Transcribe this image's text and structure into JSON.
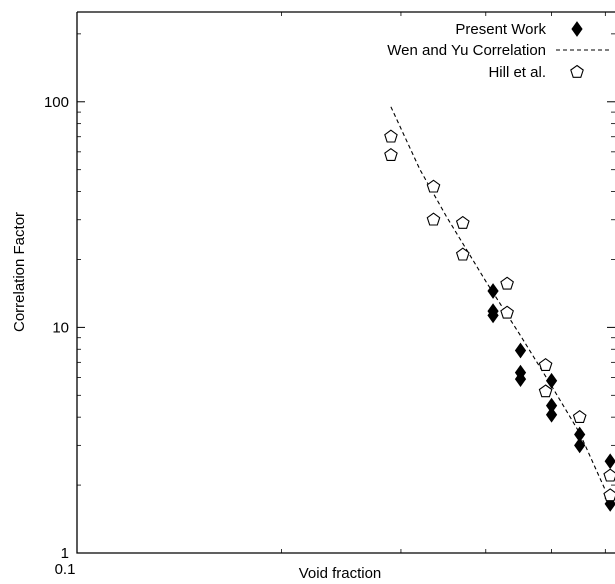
{
  "chart_data": {
    "type": "scatter",
    "x_scale": "log",
    "y_scale": "log",
    "xlabel": "Void fraction",
    "ylabel": "Correlation Factor",
    "xlim": [
      0.1,
      0.62
    ],
    "ylim": [
      1,
      250
    ],
    "x_tick_labels": [
      {
        "value": 0.1,
        "label": "0.1"
      }
    ],
    "y_tick_labels": [
      {
        "value": 1,
        "label": "1"
      },
      {
        "value": 10,
        "label": "10"
      },
      {
        "value": 100,
        "label": "100"
      }
    ],
    "legend_position": "top-right",
    "series": [
      {
        "name": "Present Work",
        "kind": "points",
        "marker": "filled-diamond",
        "color": "#000000",
        "points": [
          {
            "x": 0.41,
            "y": 14.5
          },
          {
            "x": 0.41,
            "y": 11.8
          },
          {
            "x": 0.41,
            "y": 11.3
          },
          {
            "x": 0.45,
            "y": 7.9
          },
          {
            "x": 0.45,
            "y": 6.3
          },
          {
            "x": 0.45,
            "y": 5.9
          },
          {
            "x": 0.5,
            "y": 5.8
          },
          {
            "x": 0.5,
            "y": 4.5
          },
          {
            "x": 0.5,
            "y": 4.1
          },
          {
            "x": 0.55,
            "y": 3.35
          },
          {
            "x": 0.55,
            "y": 3.0
          },
          {
            "x": 0.61,
            "y": 2.55
          },
          {
            "x": 0.61,
            "y": 1.75
          },
          {
            "x": 0.61,
            "y": 1.65
          }
        ]
      },
      {
        "name": "Wen and Yu Correlation",
        "kind": "line",
        "line_style": "dashed",
        "color": "#000000",
        "points": [
          {
            "x": 0.29,
            "y": 95
          },
          {
            "x": 0.32,
            "y": 50
          },
          {
            "x": 0.35,
            "y": 31
          },
          {
            "x": 0.4,
            "y": 16
          },
          {
            "x": 0.45,
            "y": 9.2
          },
          {
            "x": 0.5,
            "y": 5.5
          },
          {
            "x": 0.55,
            "y": 3.4
          },
          {
            "x": 0.6,
            "y": 1.9
          }
        ]
      },
      {
        "name": "Hill et al.",
        "kind": "points",
        "marker": "open-pentagon",
        "color": "#000000",
        "points": [
          {
            "x": 0.29,
            "y": 70
          },
          {
            "x": 0.29,
            "y": 58
          },
          {
            "x": 0.335,
            "y": 42
          },
          {
            "x": 0.335,
            "y": 30
          },
          {
            "x": 0.37,
            "y": 29
          },
          {
            "x": 0.37,
            "y": 21
          },
          {
            "x": 0.43,
            "y": 15.6
          },
          {
            "x": 0.43,
            "y": 11.6
          },
          {
            "x": 0.49,
            "y": 6.8
          },
          {
            "x": 0.49,
            "y": 5.2
          },
          {
            "x": 0.55,
            "y": 4.0
          },
          {
            "x": 0.61,
            "y": 2.2
          },
          {
            "x": 0.61,
            "y": 1.8
          }
        ]
      }
    ]
  }
}
